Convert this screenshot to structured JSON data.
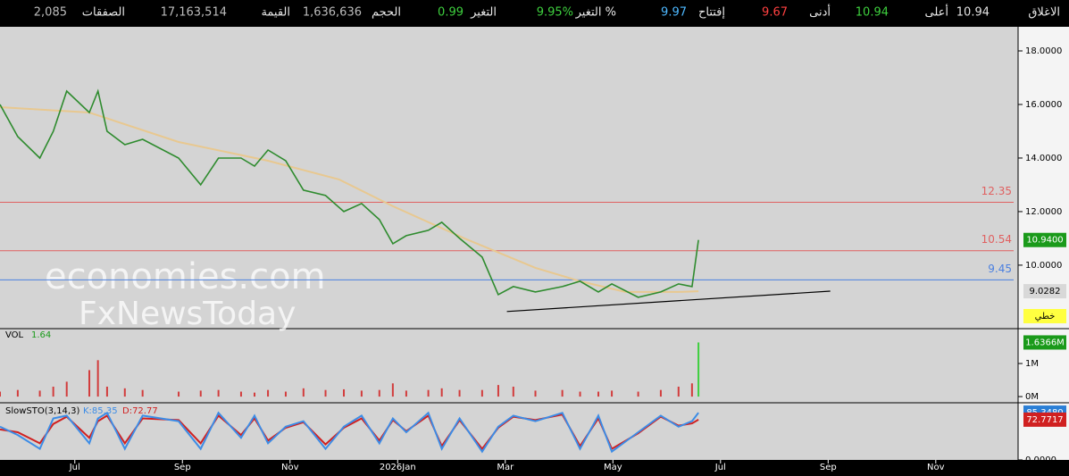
{
  "header": {
    "items": [
      {
        "label": "الاغلاق",
        "value": "10.94",
        "color": "#e0e0e0"
      },
      {
        "label": "أعلى",
        "value": "10.94",
        "color": "#3ecf3e"
      },
      {
        "label": "أدنى",
        "value": "9.67",
        "color": "#ff4040"
      },
      {
        "label": "إفتتاح",
        "value": "9.97",
        "color": "#4db8ff"
      },
      {
        "label": "التغير %",
        "value": "9.95%",
        "color": "#3ecf3e"
      },
      {
        "label": "التغير",
        "value": "0.99",
        "color": "#3ecf3e"
      },
      {
        "label": "الحجم",
        "value": "1,636,636",
        "color": "#bbbbbb"
      },
      {
        "label": "القيمة",
        "value": "17,163,514",
        "color": "#bbbbbb"
      },
      {
        "label": "الصفقات",
        "value": "2,085",
        "color": "#bbbbbb"
      }
    ]
  },
  "watermark": {
    "line1": "economies.com",
    "line2": "FxNewsToday"
  },
  "chart_data": [
    {
      "type": "line",
      "series": [
        {
          "color": "#2e8b2e",
          "x": [
            -1.39,
            -1.06,
            -0.65,
            -0.4,
            -0.15,
            0.27,
            0.43,
            0.6,
            0.93,
            1.26,
            1.93,
            2.34,
            2.67,
            3.09,
            3.34,
            3.59,
            3.92,
            4.25,
            4.66,
            5.0,
            5.33,
            5.66,
            5.91,
            6.16,
            6.57,
            6.82,
            7.15,
            7.57,
            7.87,
            8.15,
            8.56,
            9.06,
            9.39,
            9.73,
            9.98,
            10.47,
            10.89,
            11.22,
            11.47,
            11.59
          ],
          "values": [
            16.0,
            14.8,
            14.0,
            15.0,
            16.5,
            15.7,
            16.5,
            15.0,
            14.5,
            14.7,
            14.0,
            13.0,
            14.0,
            14.0,
            13.7,
            14.3,
            13.9,
            12.8,
            12.6,
            12.0,
            12.3,
            11.7,
            10.8,
            11.1,
            11.3,
            11.6,
            11.0,
            10.3,
            8.9,
            9.2,
            9.0,
            9.2,
            9.4,
            9.0,
            9.3,
            8.8,
            9.0,
            9.3,
            9.2,
            10.94
          ]
        },
        {
          "color": "#e8c890",
          "x": [
            -1.39,
            0.27,
            1.93,
            3.59,
            4.91,
            5.91,
            7.24,
            8.56,
            9.39,
            10.23,
            11.22,
            11.59
          ],
          "values": [
            15.9,
            15.7,
            14.6,
            13.9,
            13.2,
            12.2,
            11.0,
            9.9,
            9.4,
            9.0,
            9.0,
            9.0282
          ]
        }
      ],
      "trendline": {
        "x": [
          8.03,
          14.04
        ],
        "values": [
          8.27,
          9.03
        ],
        "color": "#000000"
      },
      "levels": [
        {
          "value": 12.35,
          "color": "#e06060"
        },
        {
          "value": 10.54,
          "color": "#e06060"
        },
        {
          "value": 9.45,
          "color": "#4a7fe0"
        }
      ],
      "tags": [
        {
          "value": 10.94,
          "label": "10.9400",
          "color": "#1a9a1a"
        },
        {
          "value": 9.0282,
          "label": "9.0282",
          "color": "#d8d8d8"
        }
      ],
      "style_tag": "خطي",
      "xlim": [
        -1.39,
        17.53
      ],
      "ylim": [
        7.63,
        18.9
      ],
      "yticks": [
        {
          "value": 18,
          "label": "18.0000"
        },
        {
          "value": 16,
          "label": "16.0000"
        },
        {
          "value": 14,
          "label": "14.0000"
        },
        {
          "value": 12,
          "label": "12.0000"
        },
        {
          "value": 10,
          "label": "10.0000"
        }
      ]
    },
    {
      "type": "bar",
      "title": "VOL",
      "last": "1.64",
      "color": "#d23c3c",
      "x": [
        -1.39,
        -1.06,
        -0.65,
        -0.4,
        -0.15,
        0.27,
        0.43,
        0.6,
        0.93,
        1.26,
        1.93,
        2.34,
        2.67,
        3.09,
        3.34,
        3.59,
        3.92,
        4.25,
        4.66,
        5.0,
        5.33,
        5.66,
        5.91,
        6.16,
        6.57,
        6.82,
        7.15,
        7.57,
        7.87,
        8.15,
        8.56,
        9.06,
        9.39,
        9.73,
        9.98,
        10.47,
        10.89,
        11.22,
        11.47,
        11.59
      ],
      "values": [
        0.15,
        0.2,
        0.18,
        0.3,
        0.45,
        0.8,
        1.1,
        0.3,
        0.25,
        0.2,
        0.15,
        0.18,
        0.2,
        0.15,
        0.12,
        0.2,
        0.15,
        0.25,
        0.2,
        0.22,
        0.18,
        0.2,
        0.4,
        0.18,
        0.2,
        0.25,
        0.2,
        0.2,
        0.35,
        0.3,
        0.18,
        0.2,
        0.15,
        0.15,
        0.18,
        0.15,
        0.2,
        0.3,
        0.4,
        1.6366
      ],
      "tags": [
        {
          "value": 1.6366,
          "label": "1.6366M",
          "color": "#1a9a1a"
        }
      ],
      "xlim": [
        -1.39,
        17.53
      ],
      "ylim": [
        -0.16,
        2.0
      ],
      "yticks": [
        {
          "value": 1,
          "label": "1M"
        },
        {
          "value": 0,
          "label": "0M"
        }
      ]
    },
    {
      "type": "line",
      "title": "SlowSTO(3,14,3)",
      "series": [
        {
          "name": "K:85.35",
          "color": "#3c8ce6",
          "x": [
            -1.39,
            -1.06,
            -0.65,
            -0.4,
            -0.15,
            0.27,
            0.43,
            0.6,
            0.93,
            1.26,
            1.93,
            2.34,
            2.67,
            3.09,
            3.34,
            3.59,
            3.92,
            4.25,
            4.66,
            5.0,
            5.33,
            5.66,
            5.91,
            6.16,
            6.57,
            6.82,
            7.15,
            7.57,
            7.87,
            8.15,
            8.56,
            9.06,
            9.39,
            9.73,
            9.98,
            10.47,
            10.89,
            11.22,
            11.47,
            11.59
          ],
          "values": [
            60,
            45,
            20,
            75,
            80,
            30,
            75,
            85,
            20,
            80,
            70,
            20,
            85,
            40,
            80,
            30,
            60,
            70,
            20,
            60,
            80,
            30,
            75,
            50,
            85,
            20,
            75,
            15,
            60,
            80,
            70,
            85,
            20,
            80,
            15,
            50,
            80,
            60,
            70,
            85.35
          ]
        },
        {
          "name": "D:72.77",
          "color": "#d02020",
          "x": [
            -1.39,
            -1.06,
            -0.65,
            -0.4,
            -0.15,
            0.27,
            0.43,
            0.6,
            0.93,
            1.26,
            1.93,
            2.34,
            2.67,
            3.09,
            3.34,
            3.59,
            3.92,
            4.25,
            4.66,
            5.0,
            5.33,
            5.66,
            5.91,
            6.16,
            6.57,
            6.82,
            7.15,
            7.57,
            7.87,
            8.15,
            8.56,
            9.06,
            9.39,
            9.73,
            9.98,
            10.47,
            10.89,
            11.22,
            11.47,
            11.59
          ],
          "values": [
            55,
            50,
            30,
            65,
            78,
            40,
            70,
            80,
            30,
            75,
            72,
            30,
            80,
            45,
            75,
            35,
            58,
            68,
            28,
            58,
            75,
            35,
            72,
            52,
            80,
            25,
            72,
            20,
            58,
            78,
            72,
            82,
            25,
            75,
            20,
            48,
            78,
            62,
            66,
            72.77
          ]
        }
      ],
      "tags": [
        {
          "value": 85.348,
          "label": "85.3480",
          "color": "#2a7fd6"
        },
        {
          "value": 72.7717,
          "label": "72.7717",
          "color": "#d02020"
        }
      ],
      "xlim": [
        -1.39,
        17.53
      ],
      "ylim": [
        0,
        100
      ],
      "yticks": [
        {
          "value": 0,
          "label": "0.0000"
        }
      ],
      "xticks": [
        {
          "value": 0,
          "label": "Jul"
        },
        {
          "value": 2,
          "label": "Sep"
        },
        {
          "value": 4,
          "label": "Nov"
        },
        {
          "value": 6,
          "label": "2026Jan"
        },
        {
          "value": 8,
          "label": "Mar"
        },
        {
          "value": 10,
          "label": "May"
        },
        {
          "value": 12,
          "label": "Jul"
        },
        {
          "value": 14,
          "label": "Sep"
        },
        {
          "value": 16,
          "label": "Nov"
        }
      ]
    }
  ]
}
